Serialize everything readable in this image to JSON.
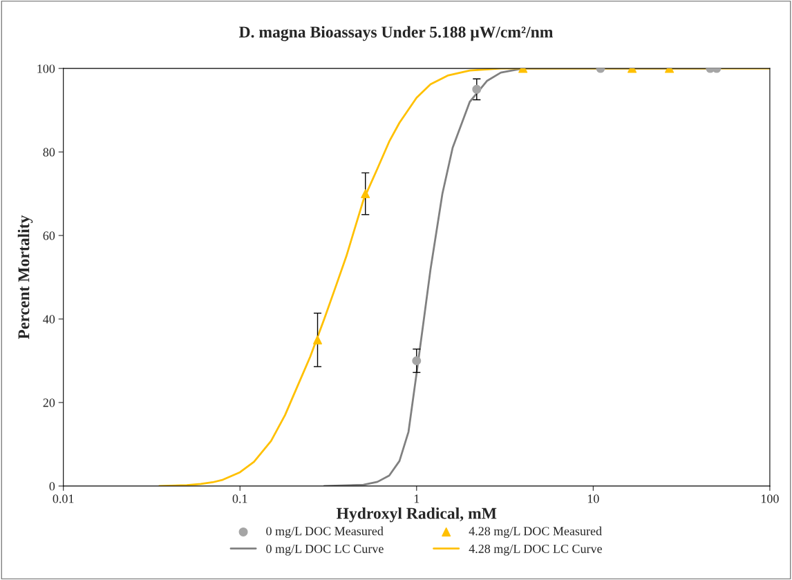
{
  "chart_data": {
    "type": "scatter",
    "title": "D. magna Bioassays Under 5.188 μW/cm²/nm",
    "xlabel": "Hydroxyl Radical, mM",
    "ylabel": "Percent Mortality",
    "log": "x",
    "xlim": [
      0.01,
      100
    ],
    "xticks": [
      0.01,
      0.1,
      1,
      10,
      100
    ],
    "ylim": [
      0,
      100
    ],
    "yticks": [
      0,
      20,
      40,
      60,
      80,
      100
    ],
    "grid": false,
    "legend": "bottom",
    "series": [
      {
        "name": "0 mg/L DOC Measured",
        "marker": "circle",
        "color": "#a5a5a5",
        "x": [
          1.0,
          2.19,
          11.0,
          46,
          50
        ],
        "values": [
          30,
          95,
          100,
          100,
          100
        ],
        "errors": [
          2.8,
          2.5,
          null,
          null,
          null
        ]
      },
      {
        "name": "0 mg/L DOC LC Curve",
        "type": "line",
        "marker": "none",
        "color": "#808080",
        "x": [
          0.3,
          0.5,
          0.6,
          0.7,
          0.8,
          0.9,
          1.0,
          1.1,
          1.2,
          1.4,
          1.6,
          2.0,
          2.5,
          3,
          4,
          10,
          50
        ],
        "values": [
          0,
          0.3,
          1,
          2.5,
          6,
          13,
          27,
          40,
          52,
          70,
          81,
          92,
          97,
          99,
          100,
          100,
          100
        ]
      },
      {
        "name": "4.28 mg/L DOC Measured",
        "marker": "triangle",
        "color": "#ffc000",
        "x": [
          0.275,
          0.513,
          4.0,
          16.6,
          27
        ],
        "values": [
          35,
          70,
          100,
          100,
          100
        ],
        "errors": [
          6.4,
          5,
          null,
          null,
          null
        ]
      },
      {
        "name": "4.28 mg/L DOC LC Curve",
        "type": "line",
        "marker": "none",
        "color": "#ffc000",
        "x": [
          0.035,
          0.05,
          0.06,
          0.07,
          0.08,
          0.1,
          0.12,
          0.15,
          0.18,
          0.2,
          0.25,
          0.3,
          0.35,
          0.4,
          0.5,
          0.6,
          0.7,
          0.8,
          1.0,
          1.2,
          1.5,
          2,
          3,
          5,
          100
        ],
        "values": [
          0,
          0.2,
          0.5,
          0.9,
          1.5,
          3.3,
          5.8,
          10.8,
          17,
          21.5,
          31,
          40,
          48,
          55,
          68.5,
          76,
          82.5,
          87,
          93,
          96.2,
          98.3,
          99.5,
          100,
          100,
          100
        ]
      }
    ]
  }
}
